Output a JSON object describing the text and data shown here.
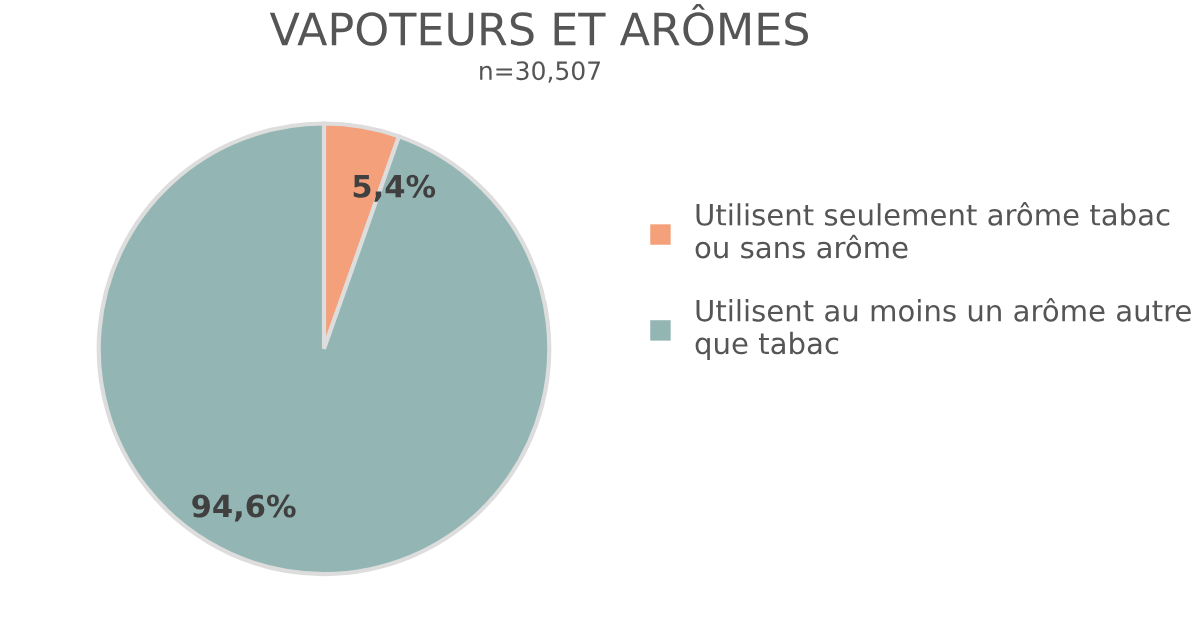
{
  "chart_data": {
    "type": "pie",
    "title": "VAPOTEURS ET ARÔMES",
    "subtitle": "n=30,507",
    "categories": [
      "Utilisent seulement arôme tabac\nou sans arôme",
      "Utilisent au moins un arôme autre\nque tabac"
    ],
    "values": [
      5.4,
      94.6
    ],
    "colors": [
      "#f4a07a",
      "#93b5b3"
    ],
    "value_labels": [
      "5,4%",
      "94,6%"
    ],
    "legend": "right"
  }
}
